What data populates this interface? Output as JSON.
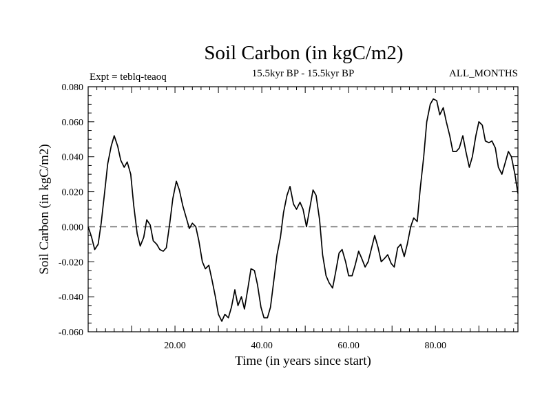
{
  "chart_data": {
    "type": "line",
    "title": "Soil Carbon (in kgC/m2)",
    "subtitle_left": "Expt = teblq-teaoq",
    "subtitle_center": "15.5kyr BP - 15.5kyr BP",
    "subtitle_right": "ALL_MONTHS",
    "xlabel": "Time (in years since start)",
    "ylabel": "Soil Carbon (in kgC/m2)",
    "xlim": [
      0,
      99
    ],
    "ylim": [
      -0.06,
      0.08
    ],
    "x_ticks": [
      {
        "value": 20,
        "label": "20.00"
      },
      {
        "value": 40,
        "label": "40.00"
      },
      {
        "value": 60,
        "label": "60.00"
      },
      {
        "value": 80,
        "label": "80.00"
      }
    ],
    "y_ticks": [
      {
        "value": -0.06,
        "label": "-0.060"
      },
      {
        "value": -0.04,
        "label": "-0.040"
      },
      {
        "value": -0.02,
        "label": "-0.020"
      },
      {
        "value": 0.0,
        "label": "0.000"
      },
      {
        "value": 0.02,
        "label": "0.020"
      },
      {
        "value": 0.04,
        "label": "0.040"
      },
      {
        "value": 0.06,
        "label": "0.060"
      },
      {
        "value": 0.08,
        "label": "0.080"
      }
    ],
    "reference_line": {
      "y": 0.0,
      "style": "dashed"
    },
    "series": [
      {
        "name": "Soil Carbon",
        "points": [
          [
            0.0,
            0.0
          ],
          [
            0.8,
            -0.006
          ],
          [
            1.5,
            -0.013
          ],
          [
            2.3,
            -0.01
          ],
          [
            3.0,
            0.002
          ],
          [
            3.8,
            0.02
          ],
          [
            4.5,
            0.036
          ],
          [
            5.3,
            0.046
          ],
          [
            6.0,
            0.052
          ],
          [
            6.8,
            0.046
          ],
          [
            7.5,
            0.038
          ],
          [
            8.3,
            0.034
          ],
          [
            9.0,
            0.037
          ],
          [
            9.8,
            0.03
          ],
          [
            10.5,
            0.012
          ],
          [
            11.3,
            -0.004
          ],
          [
            12.0,
            -0.011
          ],
          [
            12.8,
            -0.006
          ],
          [
            13.5,
            0.004
          ],
          [
            14.3,
            0.001
          ],
          [
            15.0,
            -0.008
          ],
          [
            15.8,
            -0.01
          ],
          [
            16.5,
            -0.013
          ],
          [
            17.3,
            -0.014
          ],
          [
            18.0,
            -0.012
          ],
          [
            18.8,
            0.002
          ],
          [
            19.5,
            0.016
          ],
          [
            20.3,
            0.026
          ],
          [
            21.0,
            0.021
          ],
          [
            21.8,
            0.012
          ],
          [
            22.5,
            0.006
          ],
          [
            23.3,
            -0.001
          ],
          [
            24.0,
            0.002
          ],
          [
            24.8,
            0.0
          ],
          [
            25.5,
            -0.008
          ],
          [
            26.3,
            -0.02
          ],
          [
            27.0,
            -0.024
          ],
          [
            27.8,
            -0.022
          ],
          [
            28.5,
            -0.03
          ],
          [
            29.3,
            -0.04
          ],
          [
            30.0,
            -0.05
          ],
          [
            30.8,
            -0.054
          ],
          [
            31.5,
            -0.05
          ],
          [
            32.3,
            -0.052
          ],
          [
            33.0,
            -0.046
          ],
          [
            33.8,
            -0.036
          ],
          [
            34.5,
            -0.045
          ],
          [
            35.3,
            -0.04
          ],
          [
            36.0,
            -0.047
          ],
          [
            36.8,
            -0.035
          ],
          [
            37.5,
            -0.024
          ],
          [
            38.3,
            -0.025
          ],
          [
            39.0,
            -0.033
          ],
          [
            39.8,
            -0.046
          ],
          [
            40.5,
            -0.052
          ],
          [
            41.3,
            -0.052
          ],
          [
            42.0,
            -0.046
          ],
          [
            42.8,
            -0.03
          ],
          [
            43.5,
            -0.016
          ],
          [
            44.3,
            -0.006
          ],
          [
            45.0,
            0.008
          ],
          [
            45.8,
            0.018
          ],
          [
            46.5,
            0.023
          ],
          [
            47.3,
            0.013
          ],
          [
            48.0,
            0.01
          ],
          [
            48.8,
            0.014
          ],
          [
            49.5,
            0.01
          ],
          [
            50.3,
            0.0
          ],
          [
            51.0,
            0.01
          ],
          [
            51.8,
            0.021
          ],
          [
            52.5,
            0.018
          ],
          [
            53.3,
            0.004
          ],
          [
            54.0,
            -0.016
          ],
          [
            54.8,
            -0.028
          ],
          [
            55.5,
            -0.032
          ],
          [
            56.3,
            -0.035
          ],
          [
            57.0,
            -0.026
          ],
          [
            57.8,
            -0.015
          ],
          [
            58.5,
            -0.013
          ],
          [
            59.3,
            -0.02
          ],
          [
            60.0,
            -0.028
          ],
          [
            60.8,
            -0.028
          ],
          [
            61.5,
            -0.022
          ],
          [
            62.3,
            -0.014
          ],
          [
            63.0,
            -0.018
          ],
          [
            63.8,
            -0.023
          ],
          [
            64.5,
            -0.02
          ],
          [
            65.3,
            -0.012
          ],
          [
            66.0,
            -0.005
          ],
          [
            66.8,
            -0.012
          ],
          [
            67.5,
            -0.02
          ],
          [
            68.3,
            -0.018
          ],
          [
            69.0,
            -0.016
          ],
          [
            69.8,
            -0.021
          ],
          [
            70.5,
            -0.023
          ],
          [
            71.3,
            -0.012
          ],
          [
            72.0,
            -0.01
          ],
          [
            72.8,
            -0.017
          ],
          [
            73.5,
            -0.01
          ],
          [
            74.3,
            0.0
          ],
          [
            75.0,
            0.005
          ],
          [
            75.8,
            0.003
          ],
          [
            76.5,
            0.022
          ],
          [
            77.3,
            0.04
          ],
          [
            78.0,
            0.06
          ],
          [
            78.8,
            0.07
          ],
          [
            79.5,
            0.073
          ],
          [
            80.3,
            0.072
          ],
          [
            81.0,
            0.064
          ],
          [
            81.8,
            0.068
          ],
          [
            82.5,
            0.06
          ],
          [
            83.3,
            0.052
          ],
          [
            84.0,
            0.043
          ],
          [
            84.8,
            0.043
          ],
          [
            85.5,
            0.045
          ],
          [
            86.3,
            0.052
          ],
          [
            87.0,
            0.043
          ],
          [
            87.8,
            0.034
          ],
          [
            88.5,
            0.04
          ],
          [
            89.3,
            0.052
          ],
          [
            90.0,
            0.06
          ],
          [
            90.8,
            0.058
          ],
          [
            91.5,
            0.049
          ],
          [
            92.3,
            0.048
          ],
          [
            93.0,
            0.049
          ],
          [
            93.8,
            0.045
          ],
          [
            94.5,
            0.034
          ],
          [
            95.3,
            0.03
          ],
          [
            96.0,
            0.036
          ],
          [
            96.8,
            0.043
          ],
          [
            97.5,
            0.04
          ],
          [
            98.3,
            0.03
          ],
          [
            99.0,
            0.019
          ]
        ]
      }
    ]
  }
}
